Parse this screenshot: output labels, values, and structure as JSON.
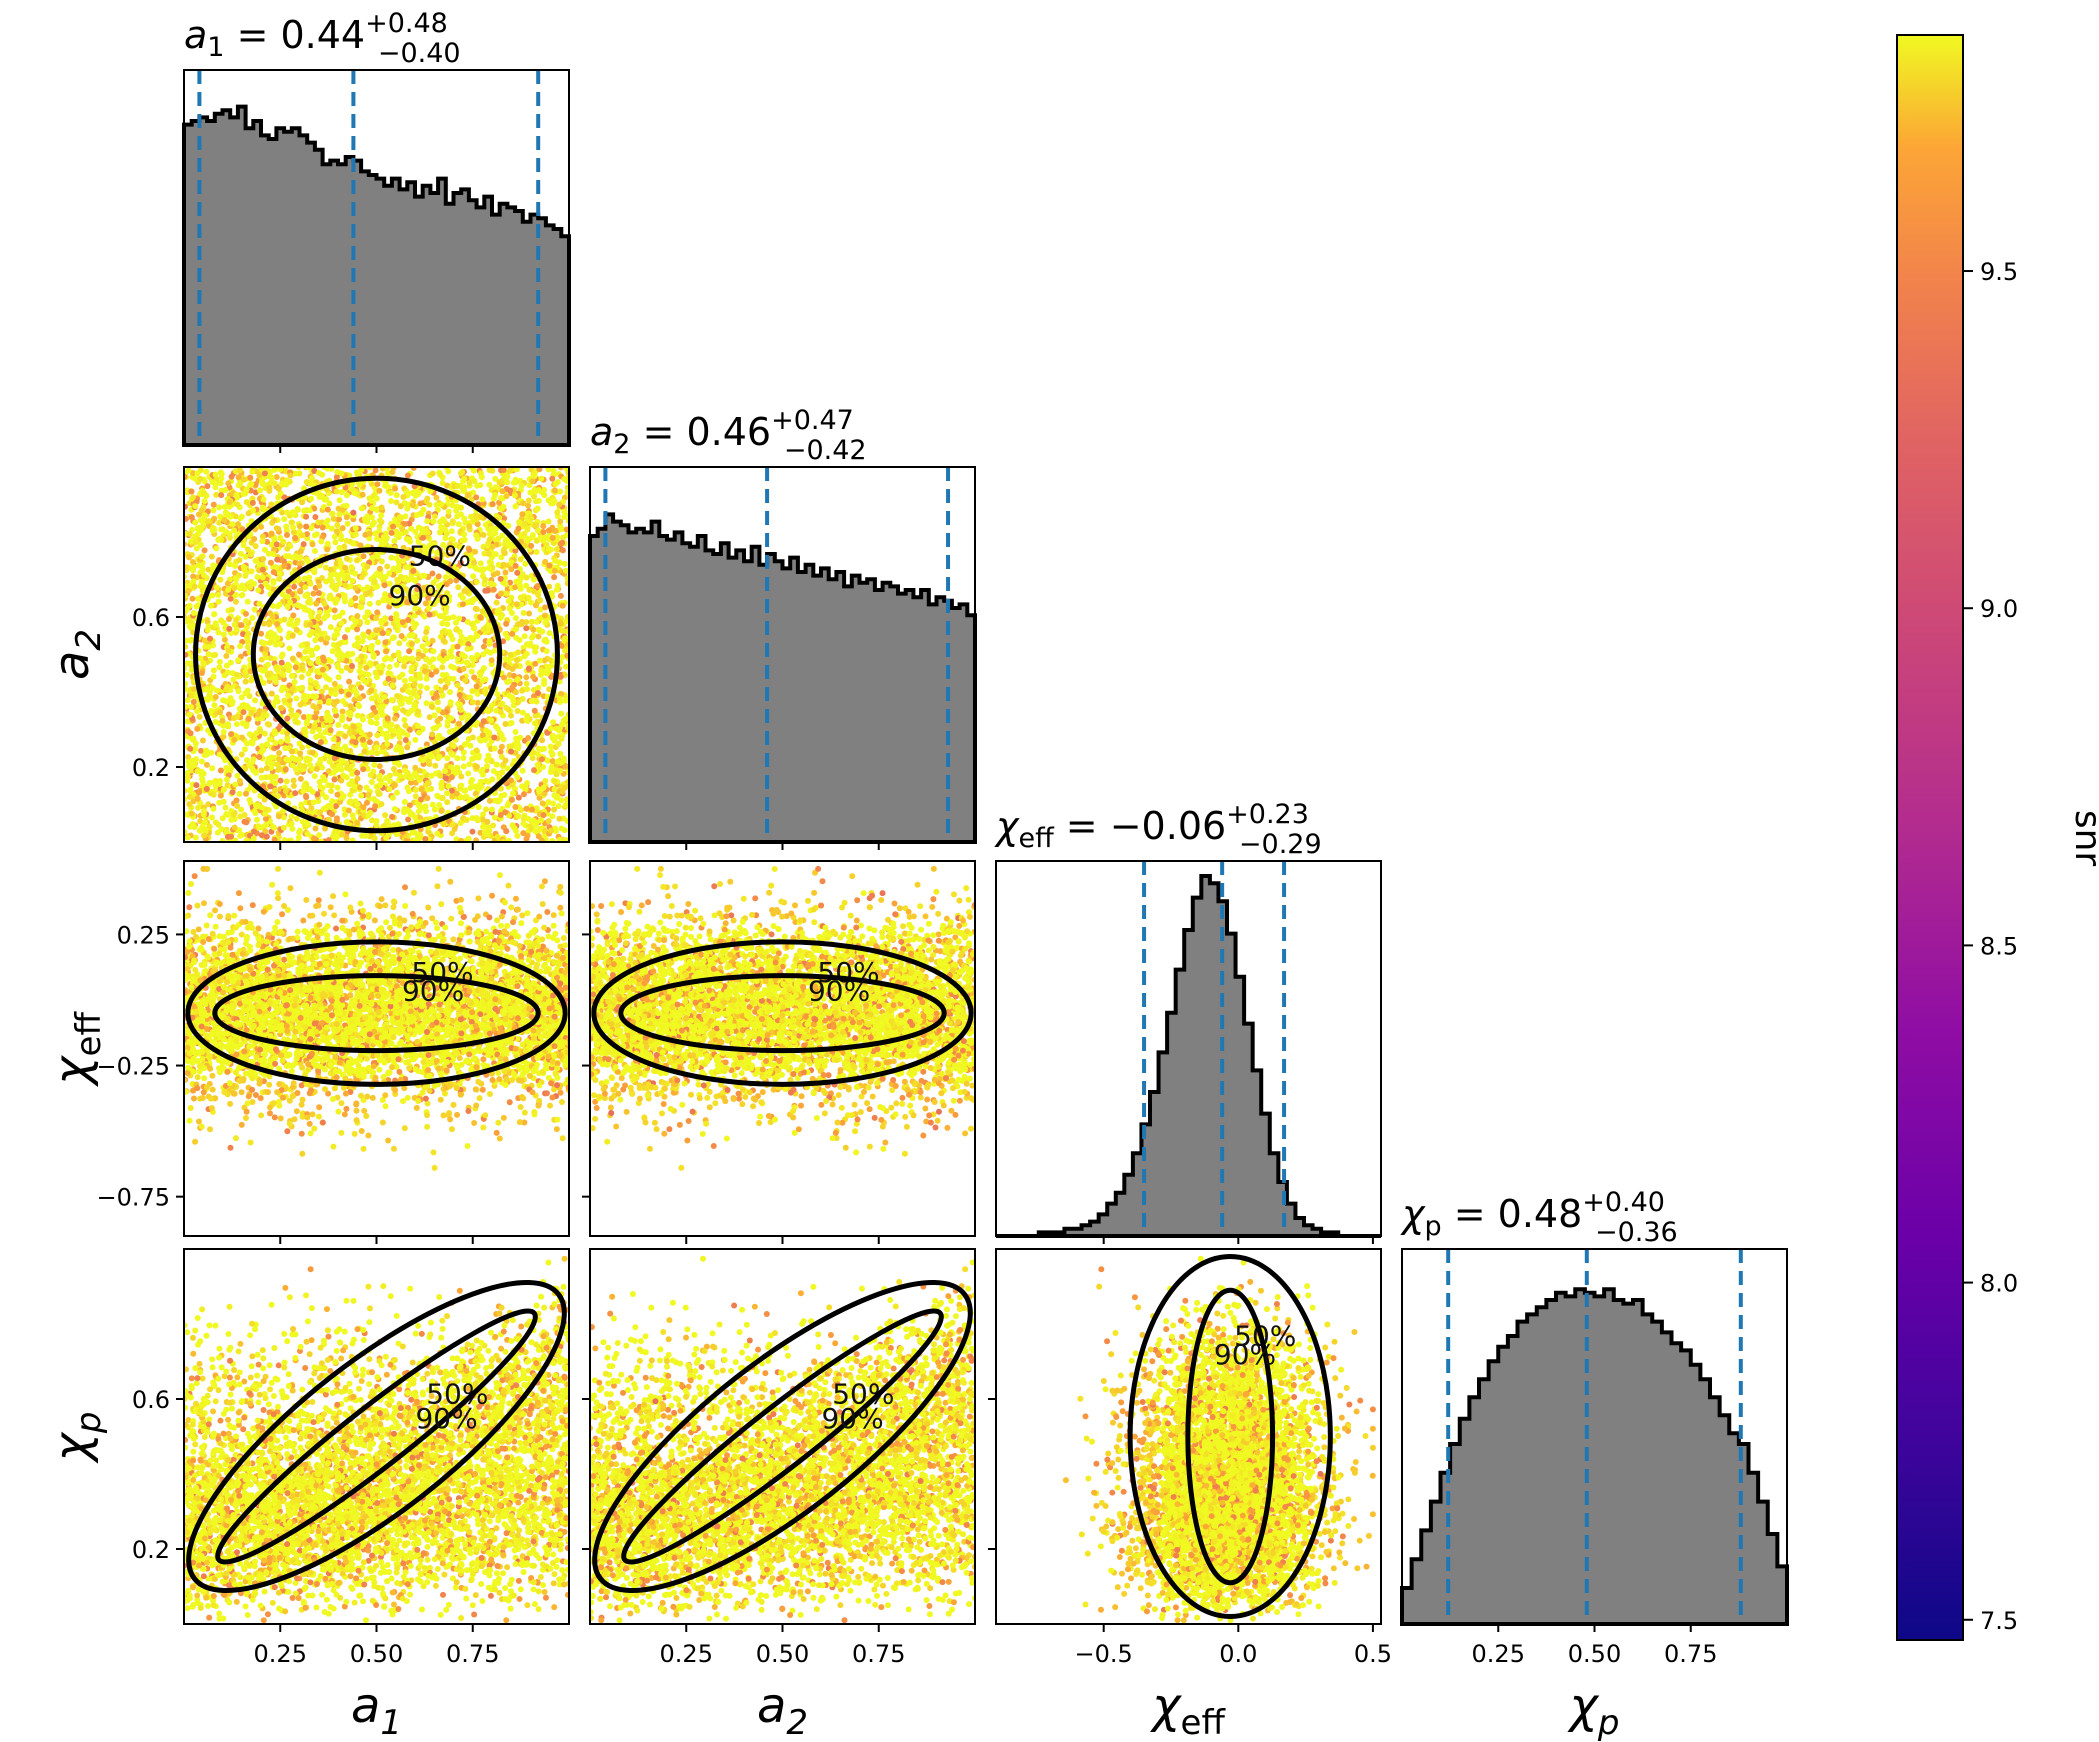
{
  "chart_data": {
    "type": "scatter",
    "subtype": "corner-plot",
    "parameters": [
      {
        "key": "a1",
        "symbol": "a",
        "subscript": "1",
        "median": "0.44",
        "plus": "+0.48",
        "minus": "−0.40",
        "range": [
          0.0,
          1.0
        ],
        "ticks": [
          0.25,
          0.5,
          0.75
        ],
        "tick_labels": [
          "0.25",
          "0.50",
          "0.75"
        ],
        "quantiles": [
          0.04,
          0.44,
          0.92
        ]
      },
      {
        "key": "a2",
        "symbol": "a",
        "subscript": "2",
        "median": "0.46",
        "plus": "+0.47",
        "minus": "−0.42",
        "range": [
          0.0,
          1.0
        ],
        "ticks": [
          0.25,
          0.5,
          0.75
        ],
        "tick_labels": [
          "0.25",
          "0.50",
          "0.75"
        ],
        "y_ticks": [
          0.2,
          0.6
        ],
        "y_tick_labels": [
          "0.2",
          "0.6"
        ],
        "quantiles": [
          0.04,
          0.46,
          0.93
        ]
      },
      {
        "key": "chi_eff",
        "symbol": "χ",
        "subscript": "eff",
        "median": "−0.06",
        "plus": "+0.23",
        "minus": "−0.29",
        "range": [
          -0.9,
          0.53
        ],
        "ticks": [
          -0.5,
          0.0,
          0.5
        ],
        "tick_labels": [
          "−0.5",
          "0.0",
          "0.5"
        ],
        "y_ticks": [
          0.25,
          -0.25,
          -0.75
        ],
        "y_tick_labels": [
          "0.25",
          "−0.25",
          "−0.75"
        ],
        "quantiles": [
          -0.35,
          -0.06,
          0.17
        ]
      },
      {
        "key": "chi_p",
        "symbol": "χ",
        "subscript": "p",
        "median": "0.48",
        "plus": "+0.40",
        "minus": "−0.36",
        "range": [
          0.0,
          1.0
        ],
        "ticks": [
          0.25,
          0.5,
          0.75
        ],
        "tick_labels": [
          "0.25",
          "0.50",
          "0.75"
        ],
        "y_ticks": [
          0.2,
          0.6
        ],
        "y_tick_labels": [
          "0.2",
          "0.6"
        ],
        "quantiles": [
          0.12,
          0.48,
          0.88
        ]
      }
    ],
    "histograms": {
      "a1": [
        0.89,
        0.9,
        0.91,
        0.9,
        0.92,
        0.93,
        0.91,
        0.94,
        0.88,
        0.9,
        0.86,
        0.85,
        0.88,
        0.87,
        0.88,
        0.86,
        0.84,
        0.82,
        0.78,
        0.79,
        0.78,
        0.8,
        0.79,
        0.76,
        0.75,
        0.74,
        0.72,
        0.74,
        0.71,
        0.73,
        0.69,
        0.72,
        0.7,
        0.74,
        0.67,
        0.7,
        0.71,
        0.68,
        0.66,
        0.69,
        0.64,
        0.67,
        0.66,
        0.65,
        0.62,
        0.64,
        0.63,
        0.61,
        0.6,
        0.58
      ],
      "a2": [
        0.85,
        0.87,
        0.91,
        0.89,
        0.88,
        0.86,
        0.87,
        0.86,
        0.89,
        0.85,
        0.84,
        0.86,
        0.83,
        0.82,
        0.85,
        0.81,
        0.8,
        0.83,
        0.79,
        0.81,
        0.78,
        0.82,
        0.77,
        0.8,
        0.78,
        0.76,
        0.79,
        0.75,
        0.77,
        0.74,
        0.76,
        0.73,
        0.75,
        0.71,
        0.74,
        0.72,
        0.73,
        0.7,
        0.72,
        0.71,
        0.69,
        0.7,
        0.68,
        0.7,
        0.66,
        0.68,
        0.67,
        0.65,
        0.66,
        0.63
      ],
      "chi_eff": [
        0.0,
        0.0,
        0.0,
        0.0,
        0.0,
        0.01,
        0.01,
        0.01,
        0.02,
        0.02,
        0.03,
        0.04,
        0.06,
        0.09,
        0.12,
        0.17,
        0.23,
        0.31,
        0.4,
        0.51,
        0.62,
        0.74,
        0.85,
        0.94,
        1.0,
        0.98,
        0.93,
        0.84,
        0.72,
        0.59,
        0.46,
        0.34,
        0.23,
        0.15,
        0.09,
        0.05,
        0.03,
        0.02,
        0.01,
        0.01,
        0.0,
        0.0,
        0.0,
        0.0,
        0.0
      ],
      "chi_p": [
        0.1,
        0.18,
        0.26,
        0.34,
        0.42,
        0.5,
        0.57,
        0.63,
        0.68,
        0.73,
        0.77,
        0.8,
        0.84,
        0.86,
        0.88,
        0.9,
        0.92,
        0.91,
        0.93,
        0.92,
        0.91,
        0.93,
        0.9,
        0.89,
        0.9,
        0.86,
        0.84,
        0.81,
        0.78,
        0.76,
        0.72,
        0.68,
        0.63,
        0.58,
        0.53,
        0.5,
        0.42,
        0.34,
        0.25,
        0.16
      ]
    },
    "contour_levels": [
      "50%",
      "90%"
    ],
    "colorbar": {
      "label": "snr",
      "cmap": "plasma",
      "range": [
        7.47,
        9.85
      ],
      "ticks": [
        7.5,
        8.0,
        8.5,
        9.0,
        9.5
      ],
      "tick_labels": [
        "7.5",
        "8.0",
        "8.5",
        "9.0",
        "9.5"
      ]
    },
    "quantile_line_color": "#1f77b4",
    "histogram_fill_color": "#808080",
    "contour_color": "#000000",
    "grid": false
  }
}
